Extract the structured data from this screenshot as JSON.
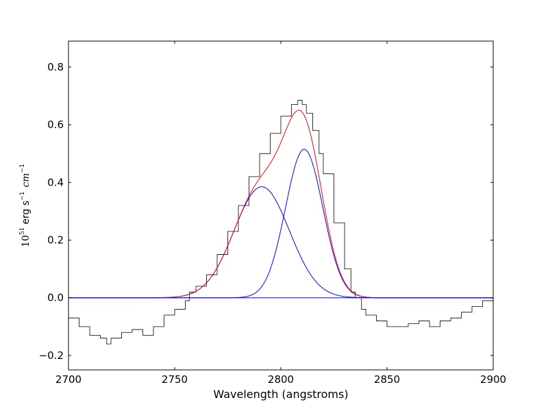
{
  "chart_data": {
    "type": "line",
    "title": "",
    "xlabel": "Wavelength (angstroms)",
    "ylabel": {
      "base": "10",
      "exp": "51",
      "mid": "erg s",
      "exp1": "−1",
      "unit": "cm",
      "exp2": "−1"
    },
    "xlim": [
      2700,
      2900
    ],
    "ylim": [
      -0.25,
      0.89
    ],
    "xticks": [
      2700,
      2750,
      2800,
      2850,
      2900
    ],
    "yticks": [
      -0.2,
      0.0,
      0.2,
      0.4,
      0.6,
      0.8
    ],
    "ytick_labels": [
      "−0.2",
      "0.0",
      "0.2",
      "0.4",
      "0.6",
      "0.8"
    ],
    "grid": false,
    "colors": {
      "spectrum": "#000000",
      "components": "#0000ff",
      "total_fit": "#ff0000"
    },
    "gaussian_components": [
      {
        "amplitude": 0.385,
        "center": 2791.0,
        "sigma": 13.0
      },
      {
        "amplitude": 0.515,
        "center": 2811.0,
        "sigma": 8.8
      }
    ],
    "zero_baseline": 0.0,
    "spectrum": {
      "x": [
        2700,
        2705,
        2710,
        2715,
        2718,
        2720,
        2725,
        2730,
        2735,
        2740,
        2745,
        2750,
        2755,
        2757,
        2760,
        2765,
        2770,
        2775,
        2780,
        2785,
        2790,
        2795,
        2800,
        2805,
        2808,
        2810,
        2812,
        2815,
        2818,
        2820,
        2825,
        2830,
        2833,
        2835,
        2838,
        2840,
        2845,
        2850,
        2855,
        2860,
        2865,
        2870,
        2875,
        2880,
        2885,
        2890,
        2895,
        2900
      ],
      "y": [
        -0.07,
        -0.1,
        -0.13,
        -0.14,
        -0.16,
        -0.14,
        -0.12,
        -0.11,
        -0.13,
        -0.1,
        -0.06,
        -0.04,
        -0.01,
        0.02,
        0.04,
        0.08,
        0.15,
        0.23,
        0.32,
        0.42,
        0.5,
        0.57,
        0.63,
        0.67,
        0.685,
        0.67,
        0.64,
        0.58,
        0.5,
        0.43,
        0.26,
        0.1,
        0.02,
        0.0,
        -0.04,
        -0.06,
        -0.08,
        -0.1,
        -0.1,
        -0.09,
        -0.08,
        -0.1,
        -0.08,
        -0.07,
        -0.05,
        -0.03,
        -0.01,
        0.0
      ]
    }
  }
}
